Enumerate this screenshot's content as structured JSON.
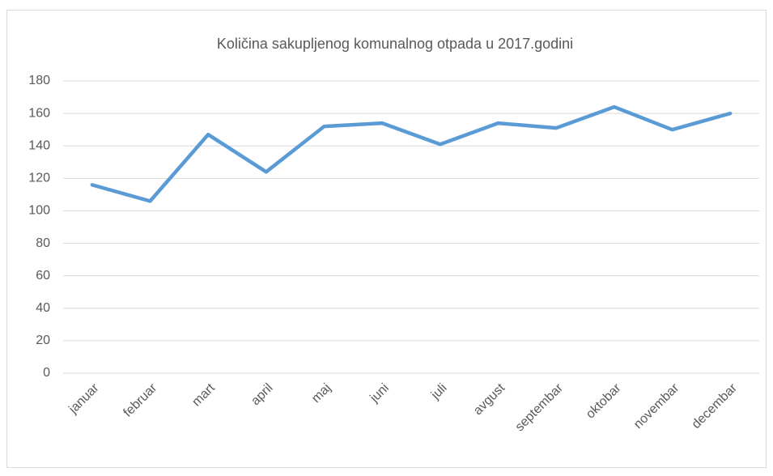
{
  "chart_data": {
    "type": "line",
    "title": "Količina sakupljenog komunalnog otpada u 2017.godini",
    "categories": [
      "januar",
      "februar",
      "mart",
      "april",
      "maj",
      "juni",
      "juli",
      "avgust",
      "septembar",
      "oktobar",
      "novembar",
      "decembar"
    ],
    "series": [
      {
        "name": "Količina",
        "color": "#5b9bd5",
        "values": [
          116,
          106,
          147,
          124,
          152,
          154,
          141,
          154,
          151,
          164,
          150,
          160
        ]
      }
    ],
    "ylim": [
      0,
      180
    ],
    "yticks": [
      0,
      20,
      40,
      60,
      80,
      100,
      120,
      140,
      160,
      180
    ],
    "grid": true
  }
}
